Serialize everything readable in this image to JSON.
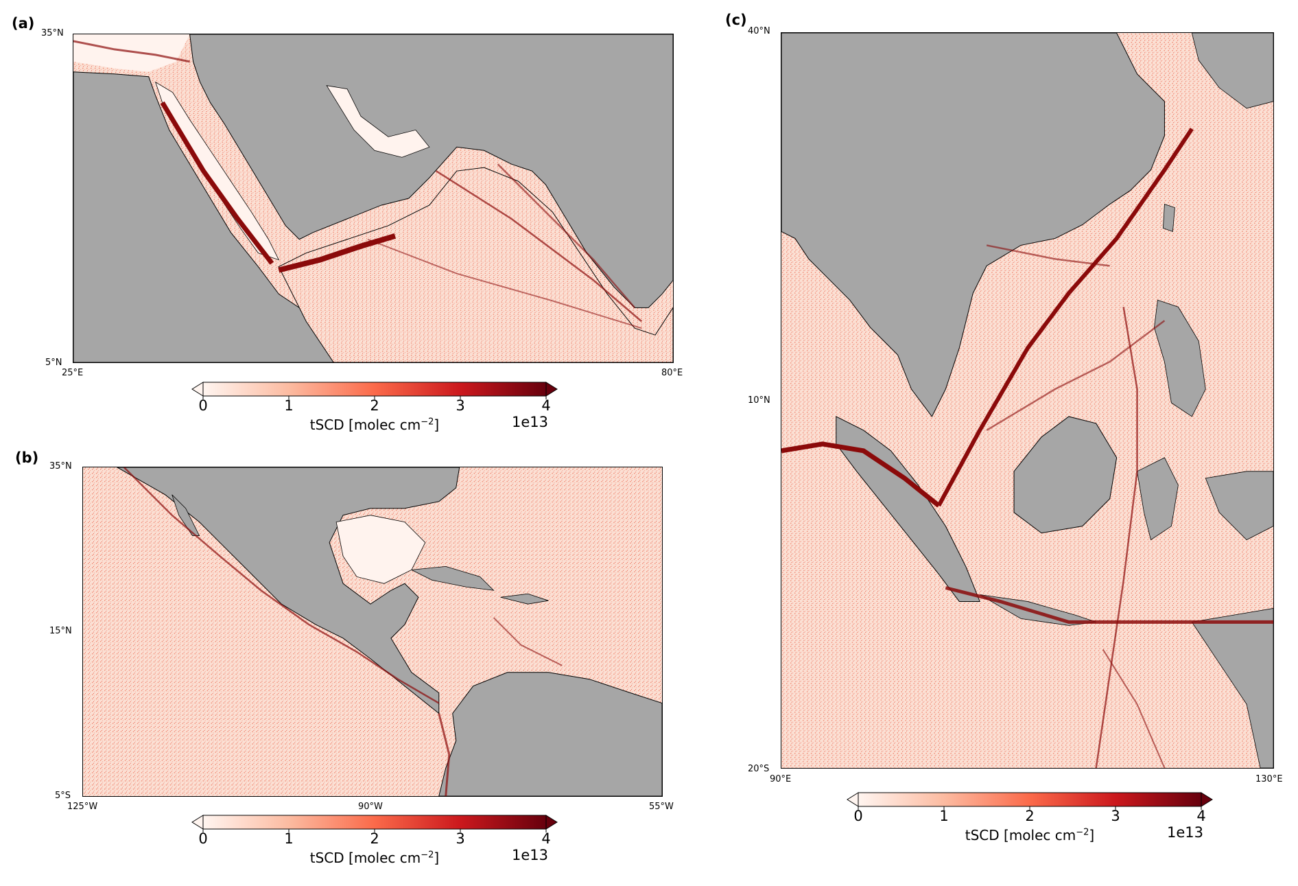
{
  "panels": [
    {
      "label": "(a)",
      "lat_ticks": [
        "35°N",
        "5°N"
      ],
      "lon_ticks": [
        "25°E",
        "80°E"
      ]
    },
    {
      "label": "(b)",
      "lat_ticks": [
        "35°N",
        "15°N",
        "5°S"
      ],
      "lon_ticks": [
        "125°W",
        "90°W",
        "55°W"
      ]
    },
    {
      "label": "(c)",
      "lat_ticks": [
        "40°N",
        "10°N",
        "20°S"
      ],
      "lon_ticks": [
        "90°E",
        "130°E"
      ]
    }
  ],
  "colorbar": {
    "ticks": [
      "0",
      "1",
      "2",
      "3",
      "4"
    ],
    "label_main": "tSCD [molec cm",
    "label_sup": "−2",
    "label_end": "]",
    "exponent": "1e13",
    "range": [
      0,
      4
    ],
    "colors": [
      "#fff5f0",
      "#fcbba1",
      "#fb6a4a",
      "#cb181d",
      "#67000d"
    ]
  },
  "colors": {
    "land": "#a6a6a6",
    "ocean_background": "#fde6dc",
    "ship_track": "#8b0a0a"
  }
}
